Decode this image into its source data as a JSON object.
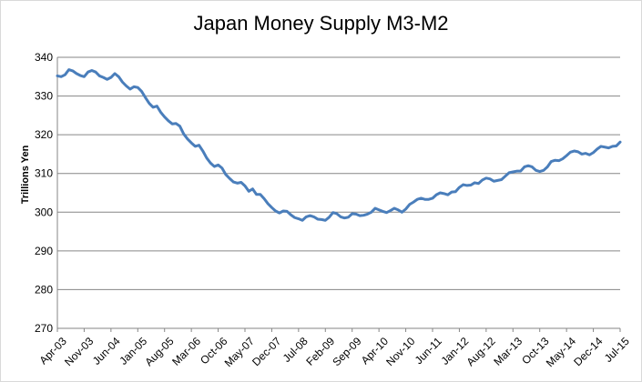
{
  "chart_data": {
    "type": "line",
    "title": "Japan Money Supply M3-M2",
    "ylabel": "Trillions Yen",
    "xlabel": "",
    "ylim": [
      270,
      340
    ],
    "yticks": [
      270,
      280,
      290,
      300,
      310,
      320,
      330,
      340
    ],
    "xticks": [
      "Apr-03",
      "Nov-03",
      "Jun-04",
      "Jan-05",
      "Aug-05",
      "Mar-06",
      "Oct-06",
      "May-07",
      "Dec-07",
      "Jul-08",
      "Feb-09",
      "Sep-09",
      "Apr-10",
      "Nov-10",
      "Jun-11",
      "Jan-12",
      "Aug-12",
      "Mar-13",
      "Oct-13",
      "May-14",
      "Dec-14",
      "Jul-15"
    ],
    "grid": true,
    "line_color": "#4a7ebb",
    "x_start": "Apr-03",
    "x_step": "1 month",
    "values": [
      335.2,
      335.0,
      335.5,
      336.8,
      336.5,
      335.8,
      335.3,
      335.0,
      336.2,
      336.6,
      336.2,
      335.2,
      334.8,
      334.3,
      334.8,
      335.8,
      335.0,
      333.6,
      332.6,
      331.8,
      332.4,
      332.2,
      331.2,
      329.6,
      328.1,
      327.1,
      327.4,
      325.8,
      324.6,
      323.6,
      322.8,
      322.9,
      322.2,
      320.2,
      318.9,
      317.9,
      317.0,
      317.3,
      315.8,
      314.0,
      312.7,
      311.8,
      312.2,
      311.4,
      309.7,
      308.7,
      307.8,
      307.5,
      307.7,
      306.8,
      305.4,
      306.0,
      304.6,
      304.6,
      303.5,
      302.2,
      301.2,
      300.3,
      299.8,
      300.3,
      300.2,
      299.3,
      298.6,
      298.3,
      297.9,
      298.8,
      299.1,
      298.8,
      298.2,
      298.1,
      297.9,
      298.7,
      299.9,
      299.6,
      298.8,
      298.5,
      298.7,
      299.6,
      299.5,
      299.1,
      299.2,
      299.5,
      300.0,
      301.0,
      300.6,
      300.2,
      299.9,
      300.4,
      301.0,
      300.6,
      300.0,
      300.8,
      302.0,
      302.6,
      303.3,
      303.6,
      303.3,
      303.3,
      303.6,
      304.5,
      305.0,
      304.8,
      304.5,
      305.2,
      305.3,
      306.4,
      307.1,
      306.9,
      307.0,
      307.6,
      307.4,
      308.3,
      308.8,
      308.6,
      308.0,
      308.2,
      308.4,
      309.3,
      310.2,
      310.4,
      310.6,
      310.6,
      311.7,
      312.0,
      311.7,
      310.8,
      310.5,
      310.8,
      311.7,
      313.1,
      313.4,
      313.3,
      313.8,
      314.6,
      315.5,
      315.8,
      315.6,
      315.0,
      315.2,
      314.8,
      315.4,
      316.3,
      317.0,
      316.8,
      316.6,
      317.0,
      317.1,
      318.1
    ]
  }
}
